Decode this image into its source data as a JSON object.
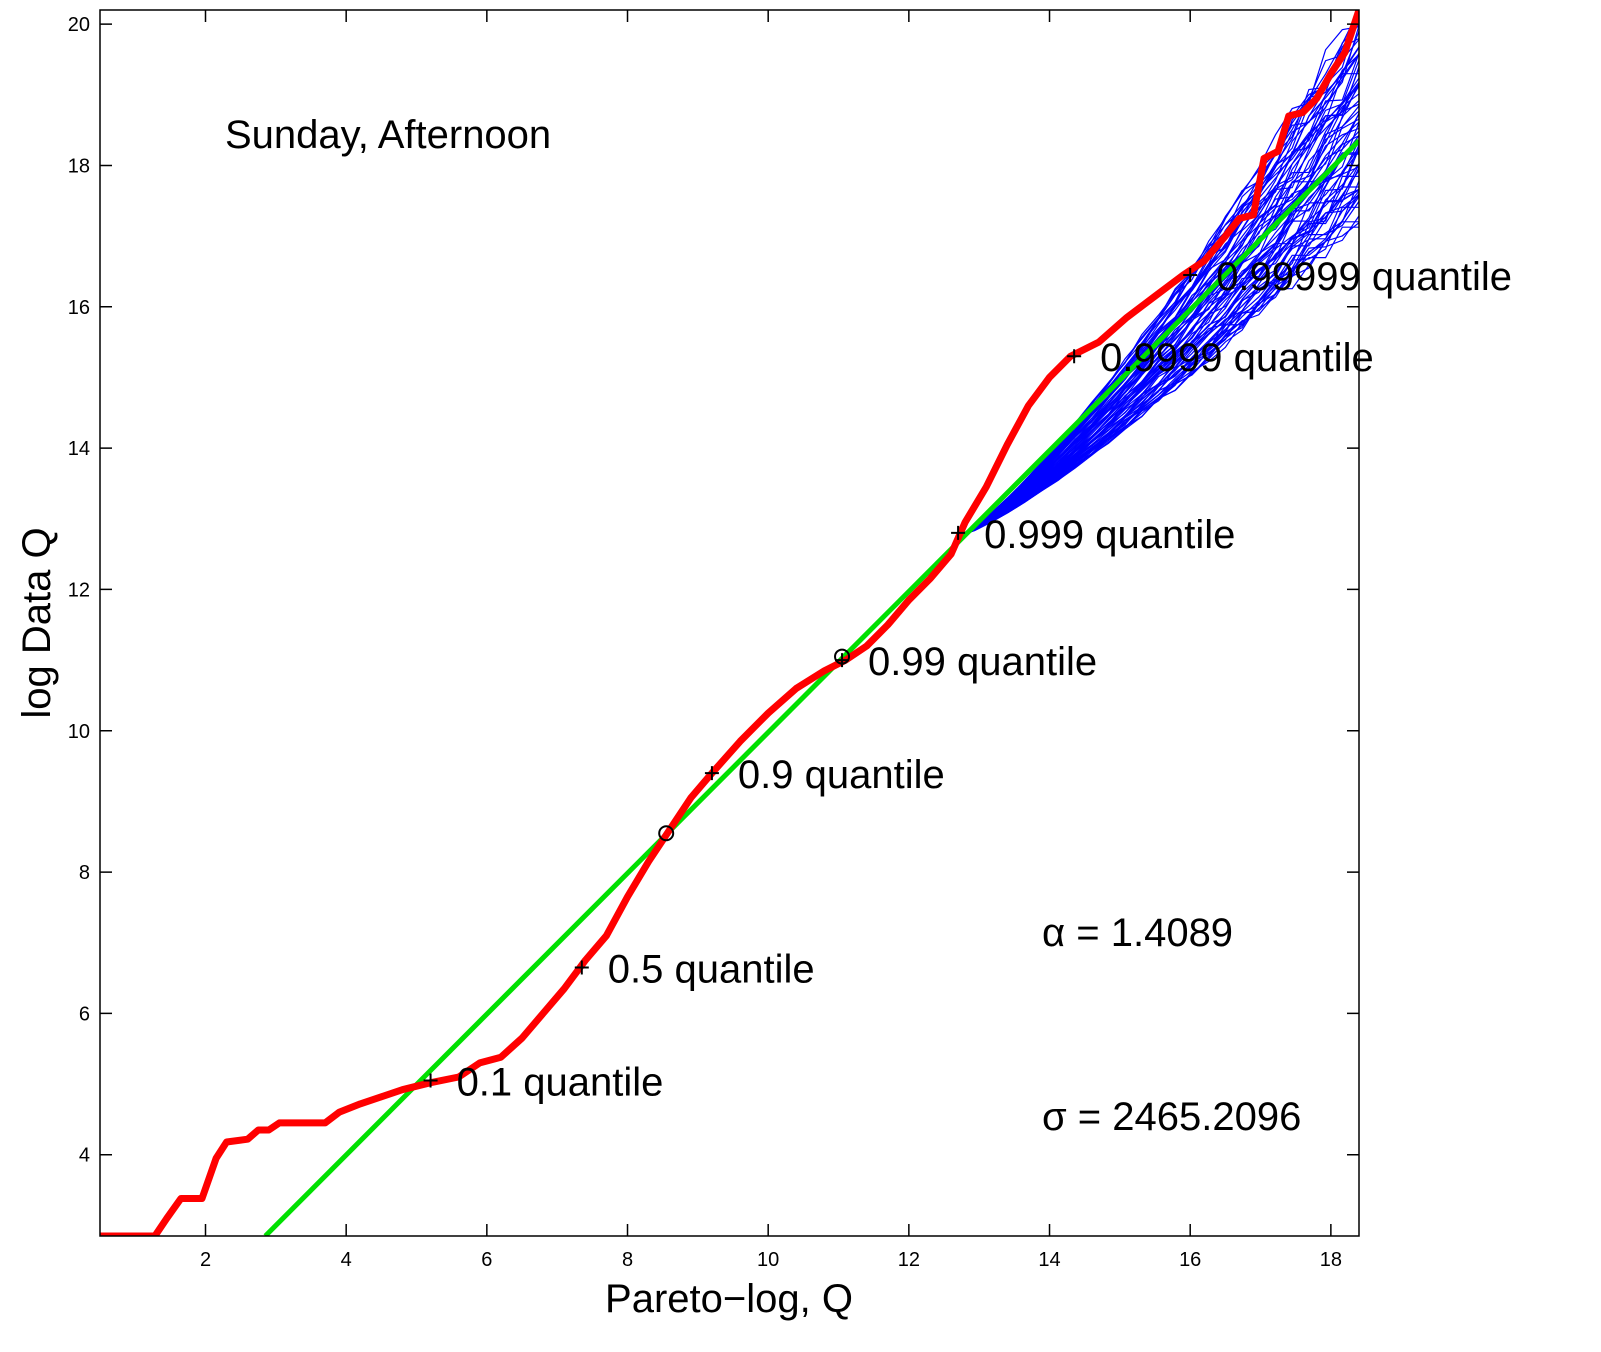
{
  "chart_data": {
    "type": "line",
    "title": "",
    "xlabel": "Pareto−log, Q",
    "ylabel": "log Data Q",
    "xlim": [
      0.5,
      18.4
    ],
    "ylim": [
      2.85,
      20.2
    ],
    "xticks": [
      2,
      4,
      6,
      8,
      10,
      12,
      14,
      16,
      18
    ],
    "yticks": [
      4,
      6,
      8,
      10,
      12,
      14,
      16,
      18,
      20
    ],
    "grid": false,
    "legend": "none",
    "annotation": "Sunday, Afternoon",
    "stats": {
      "alpha": "α = 1.4089",
      "sigma": "σ = 2465.2096"
    },
    "colors": {
      "data": "#ff0000",
      "fit": "#00e000",
      "simulations": "#0000ff",
      "markers": "#000000"
    },
    "series": [
      {
        "role": "data",
        "points": [
          [
            0.5,
            2.85
          ],
          [
            1.28,
            2.85
          ],
          [
            1.45,
            3.1
          ],
          [
            1.65,
            3.38
          ],
          [
            1.95,
            3.38
          ],
          [
            2.15,
            3.95
          ],
          [
            2.3,
            4.18
          ],
          [
            2.6,
            4.22
          ],
          [
            2.75,
            4.35
          ],
          [
            2.9,
            4.35
          ],
          [
            3.05,
            4.45
          ],
          [
            3.3,
            4.45
          ],
          [
            3.7,
            4.45
          ],
          [
            3.9,
            4.6
          ],
          [
            4.2,
            4.72
          ],
          [
            4.5,
            4.82
          ],
          [
            4.8,
            4.92
          ],
          [
            5.2,
            5.02
          ],
          [
            5.6,
            5.1
          ],
          [
            5.9,
            5.3
          ],
          [
            6.2,
            5.38
          ],
          [
            6.5,
            5.65
          ],
          [
            6.8,
            6.0
          ],
          [
            7.1,
            6.35
          ],
          [
            7.4,
            6.75
          ],
          [
            7.7,
            7.1
          ],
          [
            8.0,
            7.65
          ],
          [
            8.3,
            8.15
          ],
          [
            8.6,
            8.6
          ],
          [
            8.9,
            9.05
          ],
          [
            9.2,
            9.4
          ],
          [
            9.6,
            9.85
          ],
          [
            10.0,
            10.25
          ],
          [
            10.4,
            10.6
          ],
          [
            10.8,
            10.85
          ],
          [
            11.1,
            11.0
          ],
          [
            11.4,
            11.2
          ],
          [
            11.7,
            11.5
          ],
          [
            12.0,
            11.85
          ],
          [
            12.3,
            12.15
          ],
          [
            12.6,
            12.5
          ],
          [
            12.8,
            12.95
          ],
          [
            13.1,
            13.45
          ],
          [
            13.4,
            14.05
          ],
          [
            13.7,
            14.6
          ],
          [
            14.0,
            15.0
          ],
          [
            14.3,
            15.3
          ],
          [
            14.7,
            15.5
          ],
          [
            15.1,
            15.85
          ],
          [
            15.5,
            16.15
          ],
          [
            15.9,
            16.45
          ],
          [
            16.2,
            16.65
          ],
          [
            16.5,
            17.0
          ],
          [
            16.7,
            17.25
          ],
          [
            16.9,
            17.3
          ],
          [
            17.05,
            18.1
          ],
          [
            17.25,
            18.2
          ],
          [
            17.4,
            18.7
          ],
          [
            17.6,
            18.75
          ],
          [
            17.8,
            18.95
          ],
          [
            18.0,
            19.3
          ],
          [
            18.2,
            19.6
          ],
          [
            18.4,
            20.2
          ]
        ]
      },
      {
        "role": "fit",
        "points": [
          [
            2.85,
            2.85
          ],
          [
            18.4,
            18.35
          ]
        ]
      }
    ],
    "simulation_band": {
      "count": 70,
      "x_start": 12.7,
      "y_start": 12.75,
      "x_end": 18.4,
      "y_end_min": 17.3,
      "y_end_max": 20.2
    },
    "quantiles": [
      {
        "label": "0.1 quantile",
        "x": 5.2,
        "y": 5.05,
        "marker": "plus"
      },
      {
        "label": "0.5 quantile",
        "x": 7.35,
        "y": 6.65,
        "marker": "plus"
      },
      {
        "label": "0.9 quantile",
        "x": 9.2,
        "y": 9.4,
        "marker": "plus"
      },
      {
        "label": "0.99 quantile",
        "x": 11.05,
        "y": 11.0,
        "marker": "plus"
      },
      {
        "label": "0.999 quantile",
        "x": 12.7,
        "y": 12.8,
        "marker": "plus"
      },
      {
        "label": "0.9999 quantile",
        "x": 14.35,
        "y": 15.3,
        "marker": "plus"
      },
      {
        "label": "0.99999 quantile",
        "x": 16.0,
        "y": 16.45,
        "marker": "plus"
      }
    ],
    "circles": [
      {
        "x": 8.55,
        "y": 8.55
      },
      {
        "x": 11.05,
        "y": 11.05
      }
    ]
  }
}
